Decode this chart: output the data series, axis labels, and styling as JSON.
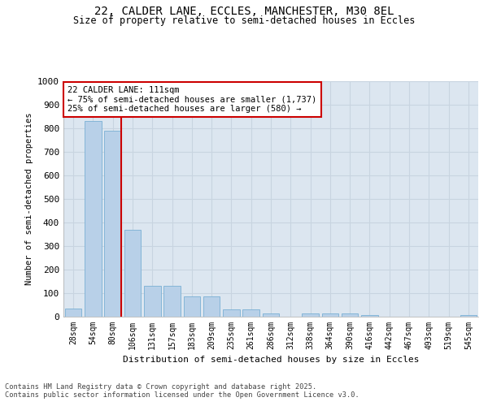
{
  "title1": "22, CALDER LANE, ECCLES, MANCHESTER, M30 8EL",
  "title2": "Size of property relative to semi-detached houses in Eccles",
  "xlabel": "Distribution of semi-detached houses by size in Eccles",
  "ylabel": "Number of semi-detached properties",
  "categories": [
    "28sqm",
    "54sqm",
    "80sqm",
    "106sqm",
    "131sqm",
    "157sqm",
    "183sqm",
    "209sqm",
    "235sqm",
    "261sqm",
    "286sqm",
    "312sqm",
    "338sqm",
    "364sqm",
    "390sqm",
    "416sqm",
    "442sqm",
    "467sqm",
    "493sqm",
    "519sqm",
    "545sqm"
  ],
  "values": [
    35,
    830,
    790,
    370,
    130,
    130,
    85,
    85,
    32,
    32,
    15,
    0,
    13,
    13,
    13,
    7,
    0,
    0,
    0,
    0,
    7
  ],
  "bar_color": "#b8d0e8",
  "bar_edge_color": "#7aafd4",
  "grid_color": "#c8d4e0",
  "bg_color": "#dce6f0",
  "vline_color": "#cc0000",
  "vline_x_index": 2,
  "annotation_text": "22 CALDER LANE: 111sqm\n← 75% of semi-detached houses are smaller (1,737)\n25% of semi-detached houses are larger (580) →",
  "annotation_box_color": "#ffffff",
  "annotation_box_edge": "#cc0000",
  "ylim": [
    0,
    1000
  ],
  "yticks": [
    0,
    100,
    200,
    300,
    400,
    500,
    600,
    700,
    800,
    900,
    1000
  ],
  "footer1": "Contains HM Land Registry data © Crown copyright and database right 2025.",
  "footer2": "Contains public sector information licensed under the Open Government Licence v3.0."
}
